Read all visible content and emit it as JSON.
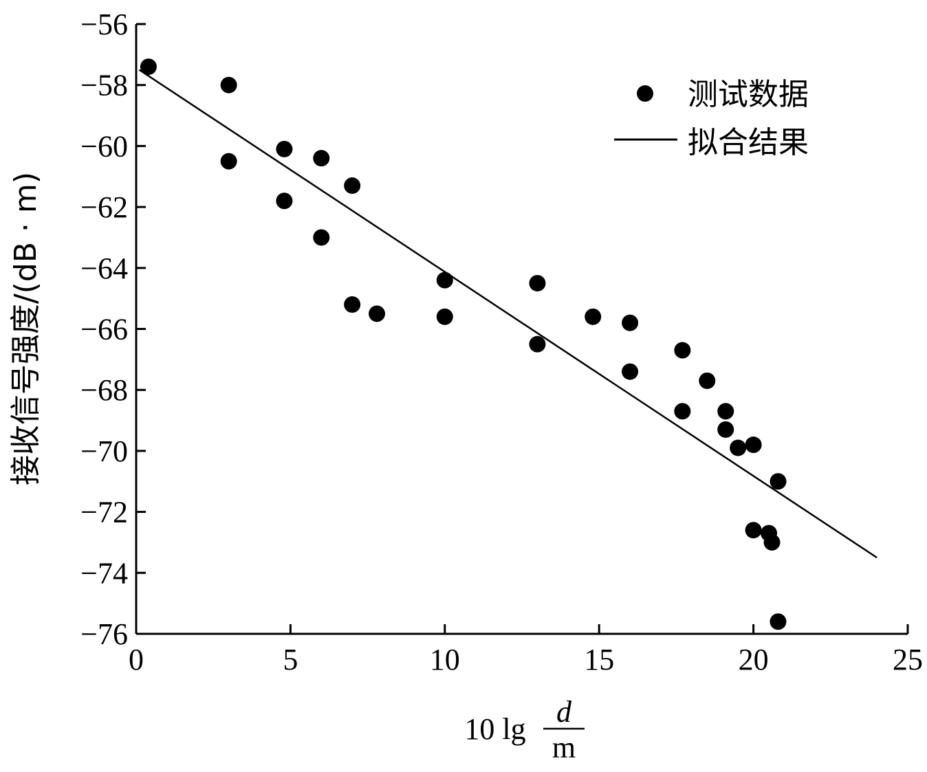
{
  "chart_data": {
    "type": "scatter",
    "xlabel": {
      "prefix": "10 lg",
      "numerator": "d",
      "denominator": "m"
    },
    "ylabel": "接收信号强度/(dB · m)",
    "xlim": [
      0,
      25
    ],
    "ylim": [
      -76,
      -56
    ],
    "x_ticks": [
      0,
      5,
      10,
      15,
      20,
      25
    ],
    "y_ticks": [
      -56,
      -58,
      -60,
      -62,
      -64,
      -66,
      -68,
      -70,
      -72,
      -74,
      -76
    ],
    "grid": false,
    "legend_position": "top-right",
    "series": [
      {
        "name": "测试数据",
        "type": "scatter",
        "color": "#000000",
        "points": [
          [
            0.4,
            -57.4
          ],
          [
            3.0,
            -58.0
          ],
          [
            3.0,
            -60.5
          ],
          [
            4.8,
            -60.1
          ],
          [
            4.8,
            -61.8
          ],
          [
            6.0,
            -60.4
          ],
          [
            6.0,
            -63.0
          ],
          [
            7.0,
            -61.3
          ],
          [
            7.0,
            -65.2
          ],
          [
            7.8,
            -65.5
          ],
          [
            10.0,
            -64.4
          ],
          [
            10.0,
            -65.6
          ],
          [
            13.0,
            -64.5
          ],
          [
            13.0,
            -66.5
          ],
          [
            14.8,
            -65.6
          ],
          [
            16.0,
            -65.8
          ],
          [
            16.0,
            -67.4
          ],
          [
            17.7,
            -66.7
          ],
          [
            17.7,
            -68.7
          ],
          [
            18.5,
            -67.7
          ],
          [
            19.1,
            -68.7
          ],
          [
            19.1,
            -69.3
          ],
          [
            19.5,
            -69.9
          ],
          [
            20.0,
            -69.8
          ],
          [
            20.0,
            -72.6
          ],
          [
            20.5,
            -72.7
          ],
          [
            20.6,
            -73.0
          ],
          [
            20.8,
            -71.0
          ],
          [
            20.8,
            -75.6
          ]
        ]
      },
      {
        "name": "拟合结果",
        "type": "line",
        "color": "#000000",
        "points": [
          [
            0.1,
            -57.5
          ],
          [
            24.0,
            -73.5
          ]
        ]
      }
    ]
  }
}
